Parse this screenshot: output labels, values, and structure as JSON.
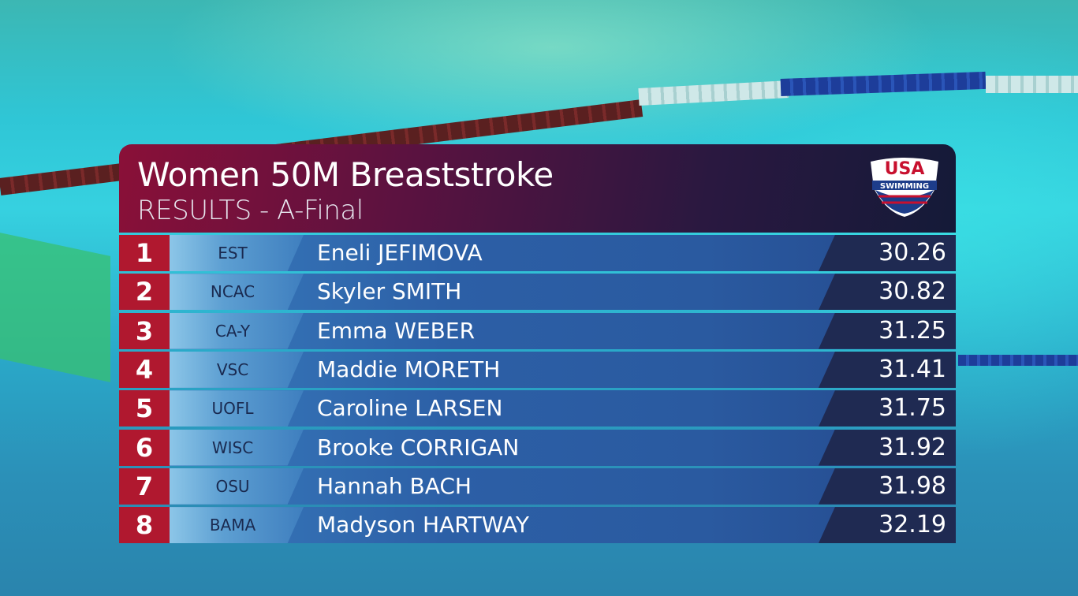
{
  "header": {
    "title": "Women 50M Breaststroke",
    "subtitle": "RESULTS - A-Final"
  },
  "logo": {
    "line1": "USA",
    "line2": "SWIMMING"
  },
  "table": {
    "rows": [
      [
        1,
        "EST",
        "Eneli JEFIMOVA",
        30.26
      ],
      [
        2,
        "NCAC",
        "Skyler SMITH",
        30.82
      ],
      [
        3,
        "CA-Y",
        "Emma WEBER",
        31.25
      ],
      [
        4,
        "VSC",
        "Maddie MORETH",
        31.41
      ],
      [
        5,
        "UOFL",
        "Caroline LARSEN",
        31.75
      ],
      [
        6,
        "WISC",
        "Brooke CORRIGAN",
        31.92
      ],
      [
        7,
        "OSU",
        "Hannah BACH",
        31.98
      ],
      [
        8,
        "BAMA",
        "Madyson HARTWAY",
        32.19
      ]
    ]
  }
}
